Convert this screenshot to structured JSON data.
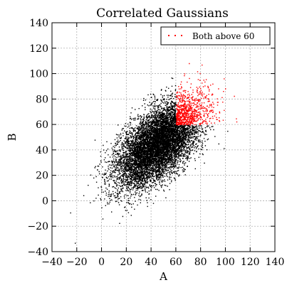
{
  "chart_data": {
    "type": "scatter",
    "title": "Correlated Gaussians",
    "xlabel": "A",
    "ylabel": "B",
    "xlim": [
      -40,
      140
    ],
    "ylim": [
      -40,
      140
    ],
    "xticks": [
      -40,
      -20,
      0,
      20,
      40,
      60,
      80,
      100,
      120,
      140
    ],
    "yticks": [
      -40,
      -20,
      0,
      20,
      40,
      60,
      80,
      100,
      120,
      140
    ],
    "grid": true,
    "legend_position": "top-right",
    "distribution": {
      "mean_a": 45,
      "mean_b": 45,
      "std_a": 17,
      "std_b": 17,
      "correlation": 0.6,
      "threshold": 60,
      "n_points": 9000
    },
    "series": [
      {
        "name": "",
        "color": "#000000",
        "condition": "otherwise"
      },
      {
        "name": "Both above 60",
        "color": "#ff0000",
        "condition": "A > 60 and B > 60"
      }
    ],
    "legend": [
      {
        "label": "Both above 60",
        "color": "#ff0000"
      }
    ]
  }
}
